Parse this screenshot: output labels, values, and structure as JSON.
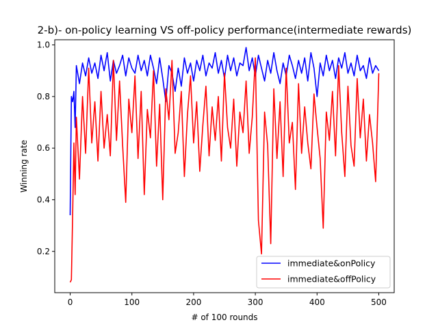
{
  "chart_data": {
    "type": "line",
    "title": "2-b)- on-policy learning VS off-policy performance(intermediate rewards)",
    "xlabel": "# of 100 rounds",
    "ylabel": "Winning rate",
    "xlim": [
      -25,
      525
    ],
    "ylim": [
      0.04,
      1.02
    ],
    "xticks": [
      0,
      100,
      200,
      300,
      400,
      500
    ],
    "xtick_labels": [
      "0",
      "100",
      "200",
      "300",
      "400",
      "500"
    ],
    "yticks": [
      0.2,
      0.4,
      0.6,
      0.8,
      1.0
    ],
    "ytick_labels": [
      "0.2",
      "0.4",
      "0.6",
      "0.8",
      "1.0"
    ],
    "grid": false,
    "legend_position": "lower-right",
    "series": [
      {
        "name": "immediate&onPolicy",
        "color": "#0000ff",
        "x": [
          0,
          2,
          4,
          6,
          8,
          10,
          15,
          20,
          25,
          30,
          35,
          40,
          45,
          50,
          55,
          60,
          65,
          70,
          75,
          80,
          85,
          90,
          95,
          100,
          105,
          110,
          115,
          120,
          125,
          130,
          135,
          140,
          145,
          150,
          155,
          160,
          165,
          170,
          175,
          180,
          185,
          190,
          195,
          200,
          205,
          210,
          215,
          220,
          225,
          230,
          235,
          240,
          245,
          250,
          255,
          260,
          265,
          270,
          275,
          280,
          285,
          290,
          295,
          300,
          305,
          310,
          315,
          320,
          325,
          330,
          335,
          340,
          345,
          350,
          355,
          360,
          365,
          370,
          375,
          380,
          385,
          390,
          395,
          400,
          405,
          410,
          415,
          420,
          425,
          430,
          435,
          440,
          445,
          450,
          455,
          460,
          465,
          470,
          475,
          480,
          485,
          490,
          495,
          500
        ],
        "y": [
          0.34,
          0.8,
          0.78,
          0.82,
          0.68,
          0.92,
          0.85,
          0.93,
          0.88,
          0.95,
          0.89,
          0.93,
          0.87,
          0.96,
          0.9,
          0.97,
          0.86,
          0.94,
          0.89,
          0.92,
          0.96,
          0.88,
          0.95,
          0.91,
          0.89,
          0.96,
          0.9,
          0.94,
          0.88,
          0.96,
          0.91,
          0.85,
          0.95,
          0.87,
          0.78,
          0.92,
          0.89,
          0.82,
          0.91,
          0.84,
          0.95,
          0.89,
          0.93,
          0.86,
          0.94,
          0.9,
          0.96,
          0.88,
          0.93,
          0.91,
          0.97,
          0.89,
          0.94,
          0.87,
          0.96,
          0.9,
          0.95,
          0.88,
          0.93,
          0.92,
          0.99,
          0.9,
          0.95,
          0.88,
          0.96,
          0.91,
          0.86,
          0.94,
          0.89,
          0.97,
          0.9,
          0.85,
          0.93,
          0.88,
          0.96,
          0.92,
          0.87,
          0.94,
          0.89,
          0.95,
          0.86,
          0.97,
          0.91,
          0.8,
          0.93,
          0.88,
          0.96,
          0.9,
          0.94,
          0.87,
          0.95,
          0.91,
          0.97,
          0.89,
          0.93,
          0.88,
          0.96,
          0.9,
          0.92,
          0.87,
          0.95,
          0.89,
          0.92,
          0.9
        ]
      },
      {
        "name": "immediate&offPolicy",
        "color": "#ff0000",
        "x": [
          0,
          2,
          4,
          6,
          8,
          10,
          15,
          20,
          25,
          30,
          35,
          40,
          45,
          50,
          55,
          60,
          65,
          70,
          75,
          80,
          85,
          90,
          95,
          100,
          105,
          110,
          115,
          120,
          125,
          130,
          135,
          140,
          145,
          150,
          155,
          160,
          165,
          170,
          175,
          180,
          185,
          190,
          195,
          200,
          205,
          210,
          215,
          220,
          225,
          230,
          235,
          240,
          245,
          250,
          255,
          260,
          265,
          270,
          275,
          280,
          285,
          290,
          295,
          300,
          305,
          310,
          315,
          320,
          325,
          330,
          335,
          340,
          345,
          350,
          355,
          360,
          365,
          370,
          375,
          380,
          385,
          390,
          395,
          400,
          405,
          410,
          415,
          420,
          425,
          430,
          435,
          440,
          445,
          450,
          455,
          460,
          465,
          470,
          475,
          480,
          485,
          490,
          495,
          500
        ],
        "y": [
          0.08,
          0.09,
          0.35,
          0.62,
          0.42,
          0.72,
          0.48,
          0.8,
          0.58,
          0.91,
          0.62,
          0.78,
          0.55,
          0.82,
          0.6,
          0.73,
          0.57,
          0.94,
          0.63,
          0.86,
          0.61,
          0.39,
          0.79,
          0.66,
          0.88,
          0.56,
          0.82,
          0.42,
          0.75,
          0.64,
          0.9,
          0.53,
          0.77,
          0.4,
          0.83,
          0.71,
          0.94,
          0.58,
          0.66,
          0.82,
          0.49,
          0.73,
          0.88,
          0.62,
          0.78,
          0.51,
          0.69,
          0.84,
          0.57,
          0.76,
          0.63,
          0.8,
          0.55,
          0.89,
          0.68,
          0.6,
          0.79,
          0.53,
          0.74,
          0.66,
          0.86,
          0.58,
          0.72,
          0.95,
          0.32,
          0.19,
          0.74,
          0.61,
          0.23,
          0.83,
          0.56,
          0.78,
          0.49,
          0.91,
          0.62,
          0.7,
          0.44,
          0.85,
          0.58,
          0.76,
          0.62,
          0.52,
          0.81,
          0.68,
          0.56,
          0.29,
          0.74,
          0.63,
          0.82,
          0.57,
          0.92,
          0.66,
          0.49,
          0.84,
          0.61,
          0.53,
          0.87,
          0.64,
          0.79,
          0.55,
          0.73,
          0.62,
          0.47,
          0.89
        ]
      }
    ]
  }
}
